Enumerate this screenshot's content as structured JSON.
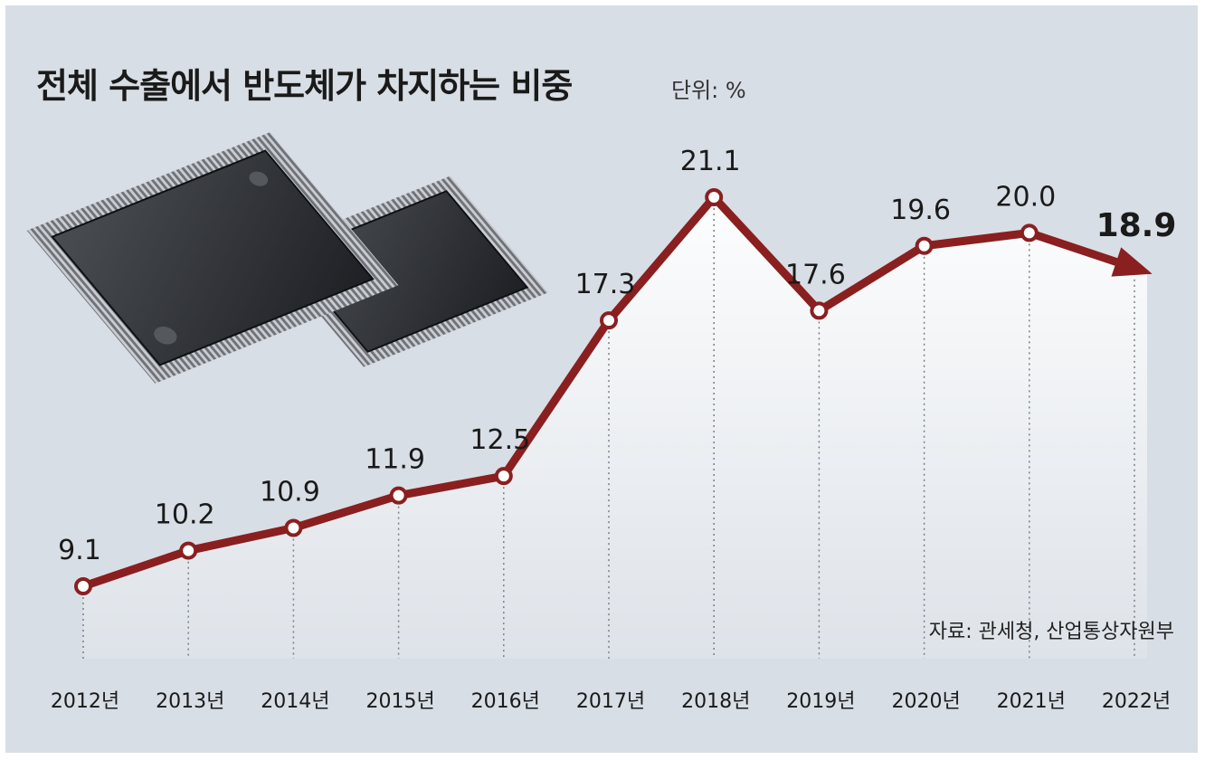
{
  "title": "전체 수출에서 반도체가 차지하는 비중",
  "unit": "단위: %",
  "source": "자료: 관세청, 산업통상자원부",
  "colors": {
    "line": "#8a1f1f",
    "background": "#d8dee5",
    "marker_fill": "#ffffff"
  },
  "illustration": "semiconductor-chips-photo",
  "chart_data": {
    "type": "line",
    "categories": [
      "2012년",
      "2013년",
      "2014년",
      "2015년",
      "2016년",
      "2017년",
      "2018년",
      "2019년",
      "2020년",
      "2021년",
      "2022년"
    ],
    "values": [
      9.1,
      10.2,
      10.9,
      11.9,
      12.5,
      17.3,
      21.1,
      17.6,
      19.6,
      20.0,
      18.9
    ],
    "labels": [
      "9.1",
      "10.2",
      "10.9",
      "11.9",
      "12.5",
      "17.3",
      "21.1",
      "17.6",
      "19.6",
      "20.0",
      "18.9"
    ],
    "highlight_last": true,
    "grid": "vertical-dotted-guides",
    "legend": "none"
  }
}
